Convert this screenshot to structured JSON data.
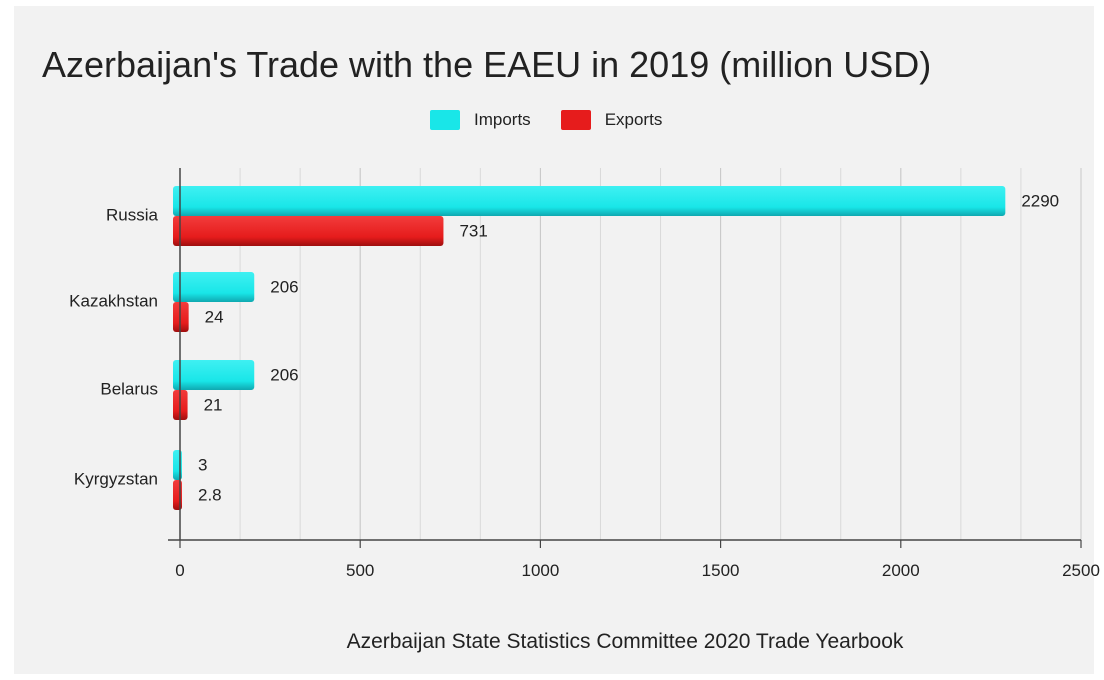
{
  "chart_data": {
    "type": "bar",
    "orientation": "horizontal",
    "title": "Azerbaijan's Trade with the EAEU in 2019 (million USD)",
    "source": "Azerbaijan State Statistics Committee 2020 Trade Yearbook",
    "categories": [
      "Russia",
      "Kazakhstan",
      "Belarus",
      "Kyrgyzstan"
    ],
    "series": [
      {
        "name": "Imports",
        "color": "#19e6e8",
        "values": [
          2290,
          206,
          206,
          3
        ],
        "labels": [
          "2290",
          "206",
          "206",
          "3"
        ]
      },
      {
        "name": "Exports",
        "color": "#e61c1c",
        "values": [
          731,
          24,
          21,
          2.8
        ],
        "labels": [
          "731",
          "24",
          "21",
          "2.8"
        ]
      }
    ],
    "x_ticks": [
      0,
      500,
      1000,
      1500,
      2000,
      2500
    ],
    "xlim": [
      0,
      2500
    ],
    "grid": true,
    "legend_position": "top"
  }
}
